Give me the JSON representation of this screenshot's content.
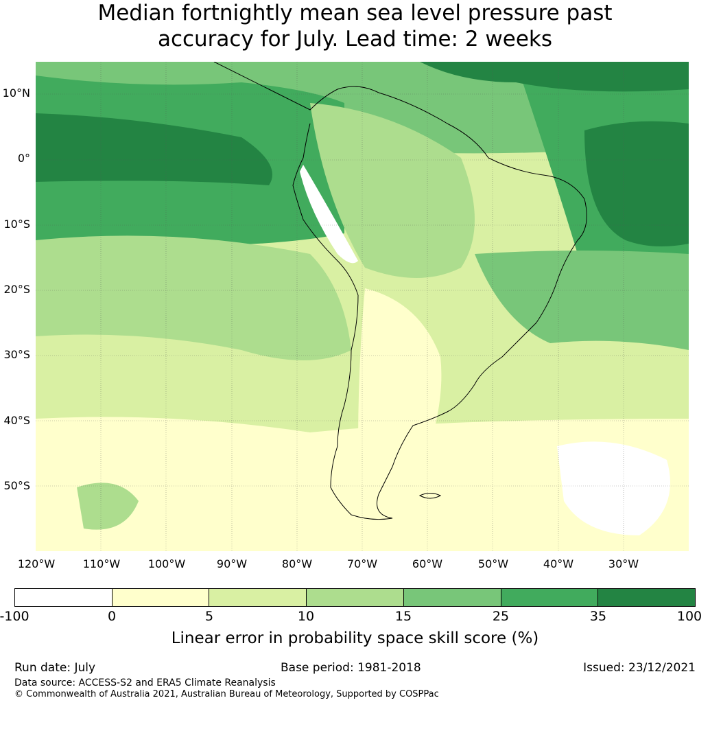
{
  "title": {
    "line1": "Median fortnightly mean sea level pressure past",
    "line2": "accuracy for July. Lead time: 2 weeks"
  },
  "map": {
    "lat_labels": [
      "10°N",
      "0°",
      "10°S",
      "20°S",
      "30°S",
      "40°S",
      "50°S"
    ],
    "lon_labels": [
      "120°W",
      "110°W",
      "100°W",
      "90°W",
      "80°W",
      "70°W",
      "60°W",
      "50°W",
      "40°W",
      "30°W"
    ],
    "gridlines": true,
    "coastline_color": "#000000"
  },
  "colorbar": {
    "colors": [
      "#ffffff",
      "#ffffcc",
      "#d9f0a3",
      "#addd8e",
      "#78c679",
      "#41ab5d",
      "#238443"
    ],
    "ticks": [
      "-100",
      "0",
      "5",
      "10",
      "15",
      "25",
      "35",
      "100"
    ],
    "label": "Linear error in probability space skill score (%)"
  },
  "footer": {
    "run_date": "Run date: July",
    "base_period": "Base period: 1981-2018",
    "issued": "Issued: 23/12/2021",
    "data_source": "Data source: ACCESS-S2 and ERA5 Climate Reanalysis",
    "copyright": "© Commonwealth of Australia 2021, Australian Bureau of Meteorology, Supported by COSPPac"
  }
}
